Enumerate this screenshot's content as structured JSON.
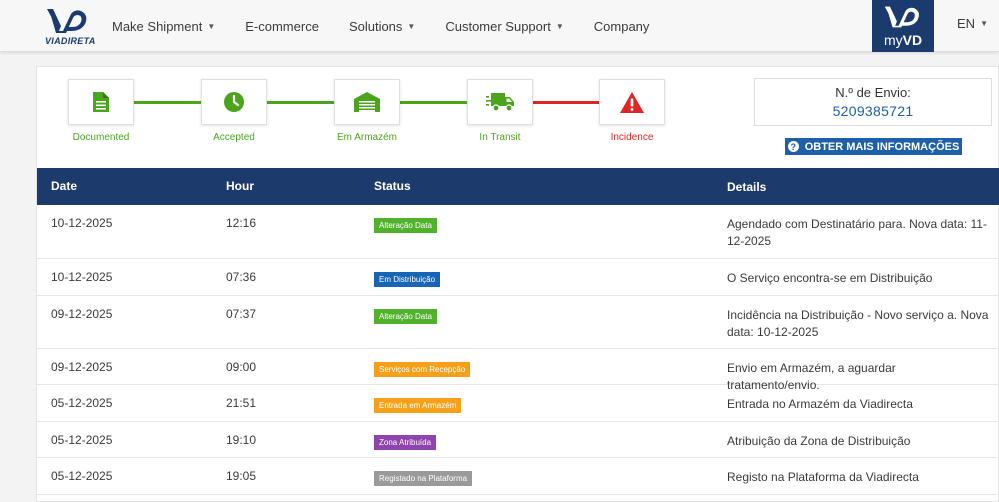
{
  "header": {
    "logo_text": "VIADIRETA",
    "nav": [
      {
        "label": "Make Shipment",
        "dropdown": true
      },
      {
        "label": "E-commerce",
        "dropdown": false
      },
      {
        "label": "Solutions",
        "dropdown": true
      },
      {
        "label": "Customer Support",
        "dropdown": true
      },
      {
        "label": "Company",
        "dropdown": false
      }
    ],
    "myvd_prefix": "my",
    "myvd_bold": "VD",
    "lang": "EN"
  },
  "steps": [
    {
      "label": "Documented",
      "icon": "document-icon",
      "state": "done"
    },
    {
      "label": "Accepted",
      "icon": "clock-icon",
      "state": "done"
    },
    {
      "label": "Em Armazém",
      "icon": "warehouse-icon",
      "state": "done"
    },
    {
      "label": "In Transit",
      "icon": "truck-icon",
      "state": "done"
    },
    {
      "label": "Incidence",
      "icon": "warning-icon",
      "state": "error"
    }
  ],
  "shipment": {
    "label": "N.º de Envio:",
    "number": "5209385721",
    "more_info_label": "OBTER MAIS INFORMAÇÕES"
  },
  "table": {
    "headers": {
      "date": "Date",
      "hour": "Hour",
      "status": "Status",
      "details": "Details"
    },
    "rows": [
      {
        "date": "10-12-2025",
        "hour": "12:16",
        "status": "Alteração Data",
        "status_color": "#52b12c",
        "details": "Agendado com Destinatário para. Nova data: 11-12-2025"
      },
      {
        "date": "10-12-2025",
        "hour": "07:36",
        "status": "Em Distribuição",
        "status_color": "#1766b5",
        "details": "O Serviço encontra-se em Distribuição"
      },
      {
        "date": "09-12-2025",
        "hour": "07:37",
        "status": "Alteração Data",
        "status_color": "#52b12c",
        "details": "Incidência na Distribuição - Novo serviço a. Nova data: 10-12-2025"
      },
      {
        "date": "09-12-2025",
        "hour": "09:00",
        "status": "Serviços com Recepção",
        "status_color": "#f6a01a",
        "details": "Envio em Armazém, a aguardar tratamento/envio."
      },
      {
        "date": "05-12-2025",
        "hour": "21:51",
        "status": "Entrada em Armazém",
        "status_color": "#f6a01a",
        "details": "Entrada no Armazém da Viadirecta"
      },
      {
        "date": "05-12-2025",
        "hour": "19:10",
        "status": "Zona Atribuída",
        "status_color": "#8e44ad",
        "details": "Atribuição da Zona de Distribuição"
      },
      {
        "date": "05-12-2025",
        "hour": "19:05",
        "status": "Registado na Plataforma",
        "status_color": "#9a9a9a",
        "details": "Registo na Plataforma da Viadirecta"
      }
    ]
  },
  "colors": {
    "brand": "#1b3a6e",
    "success": "#4aa51d",
    "error": "#e02323",
    "link": "#1f5fa8"
  }
}
